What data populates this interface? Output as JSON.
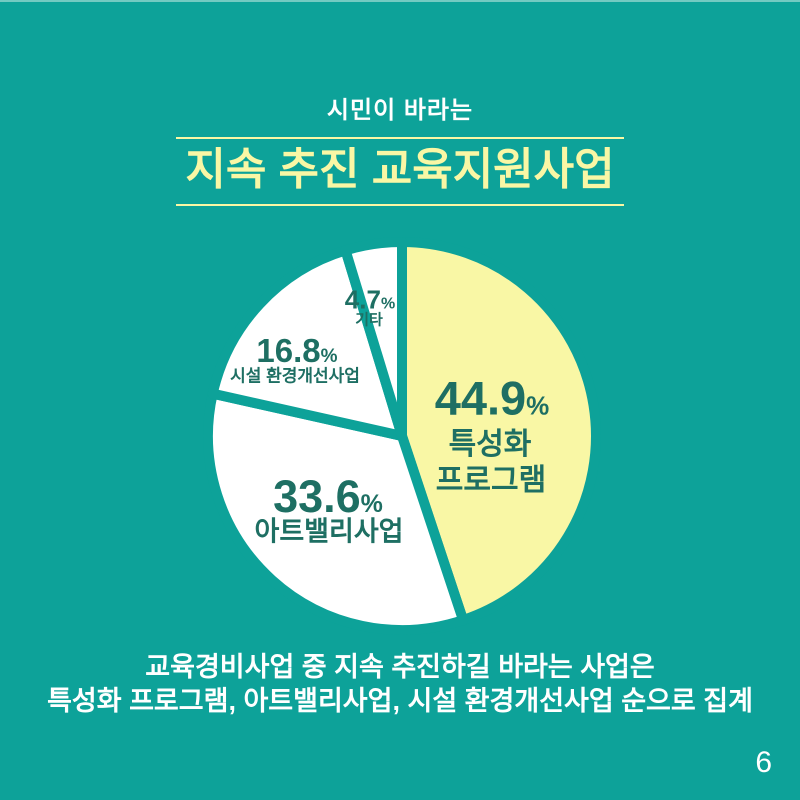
{
  "page": {
    "background_color": "#0da299",
    "page_number": "6"
  },
  "header": {
    "eyebrow": "시민이 바라는",
    "title": "지속 추진 교육지원사업"
  },
  "chart_data": {
    "type": "pie",
    "title": "시민이 바라는 지속 추진 교육지원사업",
    "unit": "%",
    "start_angle_deg": 0,
    "direction": "clockwise",
    "gap_color": "#0da299",
    "label_color": "#1e6f63",
    "slices": [
      {
        "label": "특성화 프로그램",
        "label_lines": [
          "특성화",
          "프로그램"
        ],
        "value": 44.9,
        "color": "#f9f7a5"
      },
      {
        "label": "아트밸리사업",
        "label_lines": [
          "아트밸리사업"
        ],
        "value": 33.6,
        "color": "#ffffff"
      },
      {
        "label": "시설 환경개선사업",
        "label_lines": [
          "시설 환경개선사업"
        ],
        "value": 16.8,
        "color": "#ffffff"
      },
      {
        "label": "기타",
        "label_lines": [
          "기타"
        ],
        "value": 4.7,
        "color": "#ffffff"
      }
    ]
  },
  "footer": {
    "lines": [
      "교육경비사업 중 지속 추진하길 바라는 사업은",
      "특성화 프로그램, 아트밸리사업, 시설 환경개선사업 순으로 집계"
    ]
  }
}
